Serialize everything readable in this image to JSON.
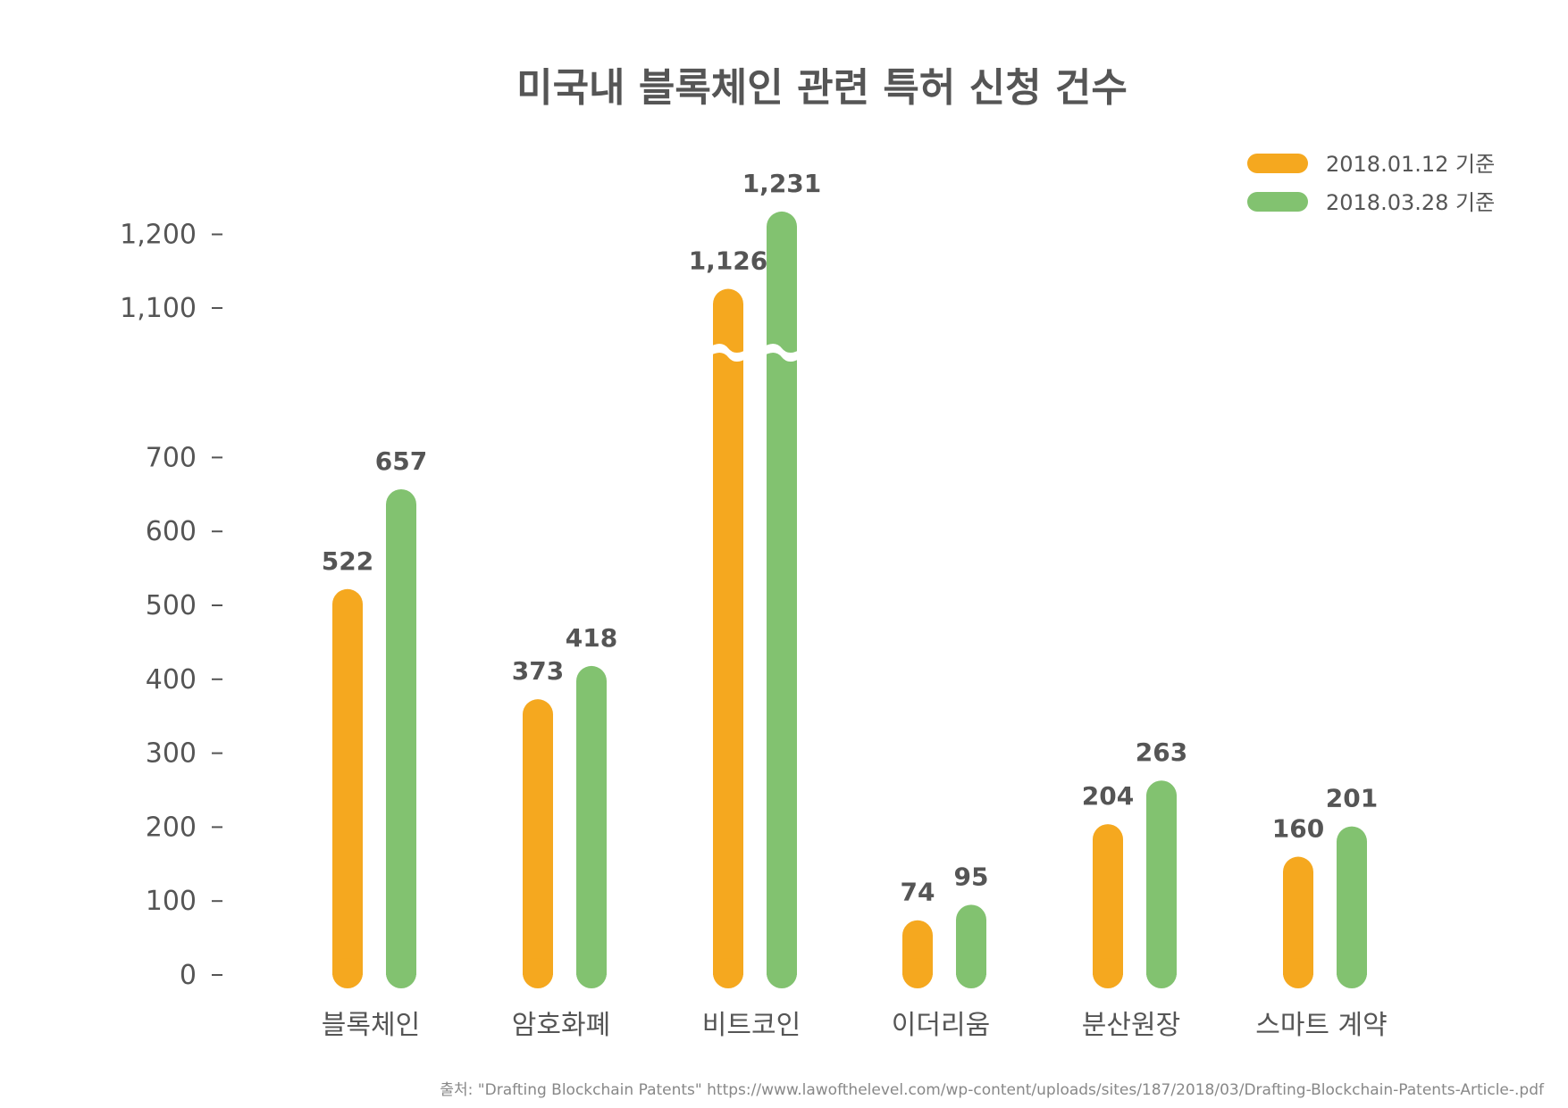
{
  "chart_data": {
    "type": "bar",
    "title": "미국내 블록체인 관련 특허 신청 건수",
    "categories": [
      "블록체인",
      "암호화폐",
      "비트코인",
      "이더리움",
      "분산원장",
      "스마트 계약"
    ],
    "series": [
      {
        "name": "2018.01.12 기준",
        "color": "#F5A81F",
        "values": [
          522,
          373,
          1126,
          74,
          204,
          160
        ]
      },
      {
        "name": "2018.03.28 기준",
        "color": "#82C270",
        "values": [
          657,
          418,
          1231,
          95,
          263,
          201
        ]
      }
    ],
    "value_labels": [
      [
        "522",
        "373",
        "1,126",
        "74",
        "204",
        "160"
      ],
      [
        "657",
        "418",
        "1,231",
        "95",
        "263",
        "201"
      ]
    ],
    "y_ticks": [
      {
        "value": 0,
        "label": "0"
      },
      {
        "value": 100,
        "label": "100"
      },
      {
        "value": 200,
        "label": "200"
      },
      {
        "value": 300,
        "label": "300"
      },
      {
        "value": 400,
        "label": "400"
      },
      {
        "value": 500,
        "label": "500"
      },
      {
        "value": 600,
        "label": "600"
      },
      {
        "value": 700,
        "label": "700"
      },
      {
        "value": 1100,
        "label": "1,100"
      },
      {
        "value": 1200,
        "label": "1,200"
      }
    ],
    "axis_break": [
      700,
      1100
    ],
    "ylim": [
      0,
      1200
    ],
    "grid": false,
    "legend": "top-right"
  },
  "source": "출처: \"Drafting Blockchain Patents\" https://www.lawofthelevel.com/wp-content/uploads/sites/187/2018/03/Drafting-Blockchain-Patents-Article-.pdf"
}
